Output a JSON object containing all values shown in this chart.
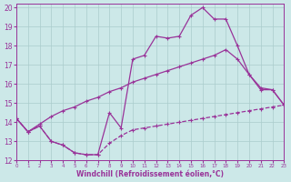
{
  "xlabel": "Windchill (Refroidissement éolien,°C)",
  "bg_color": "#cce8e8",
  "grid_color": "#aacccc",
  "line_color": "#993399",
  "xlim": [
    0,
    23
  ],
  "ylim": [
    12,
    20.2
  ],
  "xticks": [
    0,
    1,
    2,
    3,
    4,
    5,
    6,
    7,
    8,
    9,
    10,
    11,
    12,
    13,
    14,
    15,
    16,
    17,
    18,
    19,
    20,
    21,
    22,
    23
  ],
  "yticks": [
    12,
    13,
    14,
    15,
    16,
    17,
    18,
    19,
    20
  ],
  "s1_x": [
    0,
    1,
    2,
    3,
    4,
    5,
    6,
    7,
    8,
    9,
    10,
    11,
    12,
    13,
    14,
    15,
    16,
    17,
    18,
    19,
    20,
    21,
    22,
    23
  ],
  "s1_y": [
    14.2,
    13.5,
    13.8,
    13.0,
    12.8,
    12.4,
    12.3,
    12.3,
    14.5,
    13.7,
    17.3,
    17.5,
    18.5,
    18.4,
    18.5,
    19.6,
    20.0,
    19.4,
    19.4,
    18.0,
    16.5,
    15.7,
    15.7,
    14.9
  ],
  "s2_x": [
    0,
    1,
    2,
    3,
    4,
    5,
    6,
    7,
    8,
    9,
    10,
    11,
    12,
    13,
    14,
    15,
    16,
    17,
    18,
    19,
    20,
    21,
    22,
    23
  ],
  "s2_y": [
    14.2,
    13.5,
    13.9,
    14.3,
    14.6,
    14.8,
    15.1,
    15.3,
    15.6,
    15.8,
    16.1,
    16.3,
    16.5,
    16.7,
    16.9,
    17.1,
    17.3,
    17.5,
    17.8,
    17.3,
    16.5,
    15.8,
    15.7,
    14.9
  ],
  "s3_x": [
    0,
    1,
    2,
    3,
    4,
    5,
    6,
    7,
    8,
    9,
    10,
    11,
    12,
    13,
    14,
    15,
    16,
    17,
    18,
    19,
    20,
    21,
    22,
    23
  ],
  "s3_y": [
    14.2,
    13.5,
    13.8,
    13.0,
    12.8,
    12.4,
    12.3,
    12.3,
    12.9,
    13.3,
    13.6,
    13.7,
    13.8,
    13.9,
    14.0,
    14.1,
    14.2,
    14.3,
    14.4,
    14.5,
    14.6,
    14.7,
    14.8,
    14.9
  ],
  "lw": 0.9,
  "ms": 2.2
}
